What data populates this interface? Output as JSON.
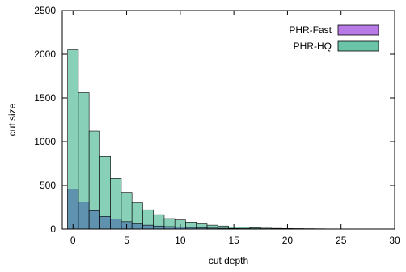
{
  "chart_data": {
    "type": "bar",
    "xlabel": "cut depth",
    "ylabel": "cut size",
    "xlim": [
      -1,
      30
    ],
    "ylim": [
      0,
      2500
    ],
    "x_ticks": [
      0,
      5,
      10,
      15,
      20,
      25,
      30
    ],
    "y_ticks": [
      0,
      500,
      1000,
      1500,
      2000,
      2500
    ],
    "x_tick_labels": [
      "0",
      "5",
      "10",
      "15",
      "20",
      "25",
      "30"
    ],
    "y_tick_labels": [
      "0",
      "500",
      "1000",
      "1500",
      "2000",
      "2500"
    ],
    "grid": false,
    "legend_position": "top-right",
    "x": [
      0,
      1,
      2,
      3,
      4,
      5,
      6,
      7,
      8,
      9,
      10,
      11,
      12,
      13,
      14,
      15,
      16,
      17,
      18,
      19,
      20,
      21,
      22,
      23,
      24,
      25,
      26,
      27,
      28,
      29
    ],
    "series": [
      {
        "name": "PHR-Fast",
        "color": "#b87ae6",
        "values": [
          460,
          310,
          210,
          145,
          115,
          85,
          60,
          45,
          35,
          28,
          22,
          18,
          14,
          11,
          9,
          7,
          5,
          4,
          3,
          3,
          2,
          2,
          1,
          1,
          1,
          1,
          0,
          0,
          0,
          0
        ]
      },
      {
        "name": "PHR-HQ",
        "color": "#6cc4a8",
        "values": [
          2050,
          1560,
          1120,
          830,
          580,
          420,
          300,
          220,
          165,
          120,
          105,
          80,
          60,
          45,
          35,
          25,
          20,
          15,
          10,
          8,
          6,
          5,
          4,
          3,
          2,
          2,
          1,
          1,
          1,
          0
        ]
      }
    ]
  }
}
